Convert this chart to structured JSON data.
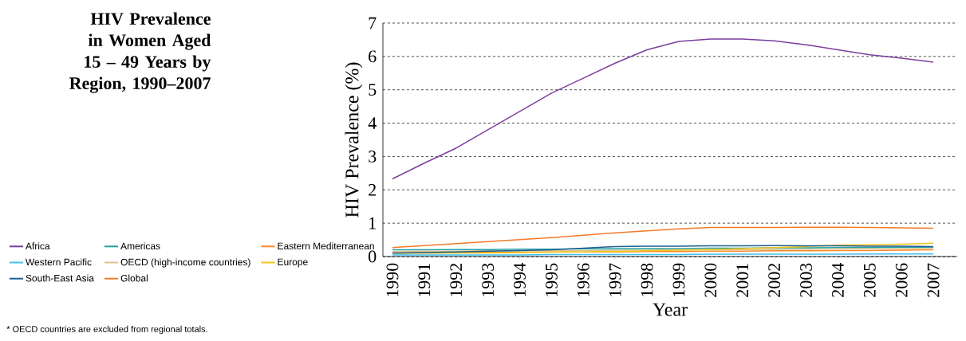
{
  "chart_data": {
    "type": "line",
    "title": "HIV Prevalence in Women Aged 15 – 49 Years by Region, 1990–2007",
    "xlabel": "Year",
    "ylabel": "HIV Prevalence (%)",
    "x": [
      1990,
      1991,
      1992,
      1993,
      1994,
      1995,
      1996,
      1997,
      1998,
      1999,
      2000,
      2001,
      2002,
      2003,
      2004,
      2005,
      2006,
      2007
    ],
    "series": [
      {
        "name": "Africa",
        "color": "#7b3f9e",
        "values": [
          2.33,
          2.8,
          3.25,
          3.8,
          4.35,
          4.9,
          5.35,
          5.8,
          6.2,
          6.45,
          6.52,
          6.52,
          6.47,
          6.35,
          6.2,
          6.05,
          5.95,
          5.83
        ]
      },
      {
        "name": "Americas",
        "color": "#1fa0a8",
        "values": [
          0.2,
          0.2,
          0.21,
          0.21,
          0.22,
          0.22,
          0.23,
          0.23,
          0.24,
          0.24,
          0.25,
          0.25,
          0.26,
          0.26,
          0.27,
          0.27,
          0.28,
          0.28
        ]
      },
      {
        "name": "Eastern Mediterranean",
        "color": "#f58a2c",
        "values": [
          0.12,
          0.12,
          0.13,
          0.13,
          0.13,
          0.14,
          0.14,
          0.14,
          0.15,
          0.15,
          0.16,
          0.16,
          0.17,
          0.17,
          0.18,
          0.18,
          0.19,
          0.2
        ]
      },
      {
        "name": "Western Pacific",
        "color": "#3ec1ee",
        "values": [
          0.05,
          0.05,
          0.05,
          0.05,
          0.05,
          0.06,
          0.06,
          0.06,
          0.06,
          0.06,
          0.07,
          0.07,
          0.07,
          0.07,
          0.07,
          0.08,
          0.08,
          0.08
        ]
      },
      {
        "name": "OECD (high-income countries)",
        "color": "#d8c58e",
        "values": [
          0.15,
          0.16,
          0.16,
          0.17,
          0.17,
          0.18,
          0.18,
          0.19,
          0.19,
          0.2,
          0.2,
          0.21,
          0.21,
          0.22,
          0.23,
          0.23,
          0.24,
          0.25
        ]
      },
      {
        "name": "Europe",
        "color": "#f5c518",
        "values": [
          0.1,
          0.1,
          0.11,
          0.11,
          0.12,
          0.13,
          0.14,
          0.15,
          0.17,
          0.19,
          0.21,
          0.24,
          0.27,
          0.3,
          0.34,
          0.35,
          0.37,
          0.4
        ]
      },
      {
        "name": "South-East Asia",
        "color": "#1f5f8f",
        "values": [
          0.1,
          0.12,
          0.14,
          0.16,
          0.18,
          0.2,
          0.25,
          0.3,
          0.31,
          0.31,
          0.32,
          0.32,
          0.33,
          0.32,
          0.32,
          0.31,
          0.31,
          0.3
        ]
      },
      {
        "name": "Global",
        "color": "#f47a2a",
        "values": [
          0.27,
          0.33,
          0.39,
          0.45,
          0.51,
          0.57,
          0.64,
          0.71,
          0.77,
          0.83,
          0.87,
          0.87,
          0.87,
          0.88,
          0.88,
          0.87,
          0.86,
          0.85
        ]
      }
    ],
    "xlim": [
      1989.7,
      2007.75
    ],
    "xticks": [
      1990,
      1991,
      1992,
      1993,
      1994,
      1995,
      1996,
      1997,
      1998,
      1999,
      2000,
      2001,
      2002,
      2003,
      2004,
      2005,
      2006,
      2007
    ],
    "ylim": [
      0,
      7
    ],
    "yticks": [
      0,
      1,
      2,
      3,
      4,
      5,
      6,
      7
    ],
    "grid": "y",
    "legend": "left",
    "annotations": [
      "* OECD countries are excluded from regional totals."
    ]
  }
}
